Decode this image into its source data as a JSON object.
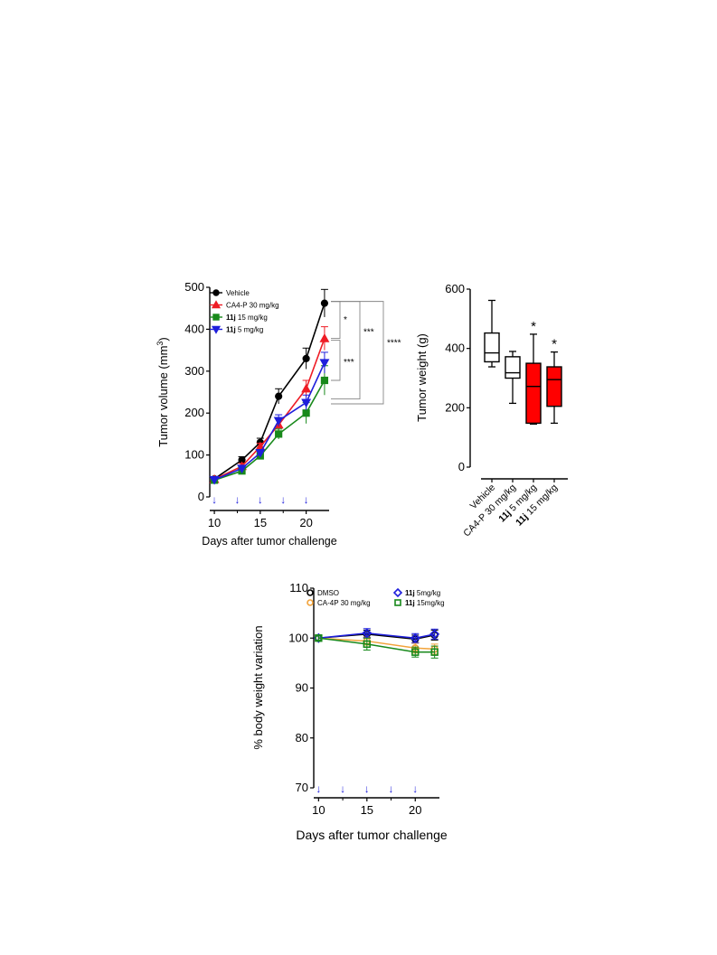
{
  "chart_data": [
    {
      "id": "tumor-volume",
      "type": "line",
      "xlabel": "Days after tumor challenge",
      "ylabel_main": "Tumor volume (mm",
      "ylabel_sup": "3",
      "ylabel_tail": ")",
      "xlim": [
        9.5,
        22.5
      ],
      "ylim": [
        0,
        500
      ],
      "xticks": [
        "10",
        "15",
        "20"
      ],
      "yticks": [
        "0",
        "100",
        "200",
        "300",
        "400",
        "500"
      ],
      "dosing_days": [
        10,
        12.5,
        15,
        17.5,
        20
      ],
      "dosing_marker": "↓",
      "series": [
        {
          "name": "Vehicle",
          "bold_prefix": "",
          "color": "#000000",
          "marker": "circle",
          "x": [
            10,
            13,
            15,
            17,
            20,
            22
          ],
          "y": [
            43,
            88,
            130,
            240,
            330,
            462
          ],
          "err": [
            5,
            8,
            10,
            18,
            25,
            33
          ]
        },
        {
          "name": "CA4-P 30 mg/kg",
          "bold_prefix": "",
          "color": "#ee1c25",
          "marker": "triangle",
          "x": [
            10,
            13,
            15,
            17,
            20,
            22
          ],
          "y": [
            42,
            73,
            120,
            172,
            258,
            378
          ],
          "err": [
            4,
            7,
            8,
            15,
            20,
            28
          ]
        },
        {
          "name": "15 mg/kg",
          "bold_prefix": "11j",
          "color": "#18891b",
          "marker": "square",
          "x": [
            10,
            13,
            15,
            17,
            20,
            22
          ],
          "y": [
            40,
            62,
            98,
            150,
            200,
            278
          ],
          "err": [
            4,
            6,
            8,
            12,
            25,
            35
          ]
        },
        {
          "name": "5 mg/kg",
          "bold_prefix": "11j",
          "color": "#1f1fdc",
          "marker": "triangle-down",
          "x": [
            10,
            13,
            15,
            17,
            20,
            22
          ],
          "y": [
            41,
            68,
            105,
            182,
            225,
            320
          ],
          "err": [
            4,
            6,
            8,
            14,
            18,
            25
          ]
        }
      ],
      "significance": [
        "*",
        "***",
        "***",
        "****"
      ]
    },
    {
      "id": "tumor-weight",
      "type": "box",
      "ylabel": "Tumor weight (g)",
      "ylim": [
        0,
        600
      ],
      "yticks": [
        "0",
        "200",
        "400",
        "600"
      ],
      "categories": [
        {
          "bold": "",
          "rest": "Vehicle"
        },
        {
          "bold": "",
          "rest": "CA4-P 30 mg/kg"
        },
        {
          "bold": "11j",
          "rest": " 5 mg/kg"
        },
        {
          "bold": "11j",
          "rest": " 15 mg/kg"
        }
      ],
      "boxes": [
        {
          "min": 338,
          "q1": 355,
          "median": 385,
          "q3": 452,
          "max": 562,
          "fill": "#ffffff",
          "star": ""
        },
        {
          "min": 215,
          "q1": 300,
          "median": 318,
          "q3": 372,
          "max": 390,
          "fill": "#ffffff",
          "star": ""
        },
        {
          "min": 145,
          "q1": 148,
          "median": 272,
          "q3": 350,
          "max": 448,
          "fill": "#ff0000",
          "star": "*"
        },
        {
          "min": 148,
          "q1": 205,
          "median": 295,
          "q3": 338,
          "max": 388,
          "fill": "#ff0000",
          "star": "*"
        }
      ]
    },
    {
      "id": "body-weight",
      "type": "line",
      "xlabel": "Days after tumor challenge",
      "ylabel": "% body weight variation",
      "xlim": [
        9.5,
        22.5
      ],
      "ylim": [
        70,
        110
      ],
      "xticks": [
        "10",
        "15",
        "20"
      ],
      "yticks": [
        "70",
        "80",
        "90",
        "100",
        "110"
      ],
      "dosing_days": [
        10,
        12.5,
        15,
        17.5,
        20
      ],
      "dosing_marker": "↓",
      "series": [
        {
          "name": "DMSO",
          "bold_prefix": "",
          "color": "#000000",
          "marker": "circle-open",
          "x": [
            10,
            15,
            20,
            22
          ],
          "y": [
            100,
            100.8,
            99.8,
            100.6
          ],
          "err": [
            0.4,
            0.8,
            0.8,
            1.0
          ]
        },
        {
          "name": "CA-4P 30 mg/kg",
          "bold_prefix": "",
          "color": "#f2a33a",
          "marker": "circle-open",
          "x": [
            10,
            15,
            20,
            22
          ],
          "y": [
            100,
            99.4,
            98.0,
            97.8
          ],
          "err": [
            0.4,
            0.8,
            1.0,
            1.0
          ]
        },
        {
          "name": " 5mg/kg",
          "bold_prefix": "11j",
          "color": "#1f1fdc",
          "marker": "diamond-open",
          "x": [
            10,
            15,
            20,
            22
          ],
          "y": [
            100,
            101.0,
            100.0,
            100.8
          ],
          "err": [
            0.4,
            0.9,
            0.9,
            1.0
          ]
        },
        {
          "name": " 15mg/kg",
          "bold_prefix": "11j",
          "color": "#18891b",
          "marker": "square-open",
          "x": [
            10,
            15,
            20,
            22
          ],
          "y": [
            100,
            98.8,
            97.2,
            97.2
          ],
          "err": [
            0.4,
            1.2,
            1.0,
            1.2
          ]
        }
      ]
    }
  ]
}
